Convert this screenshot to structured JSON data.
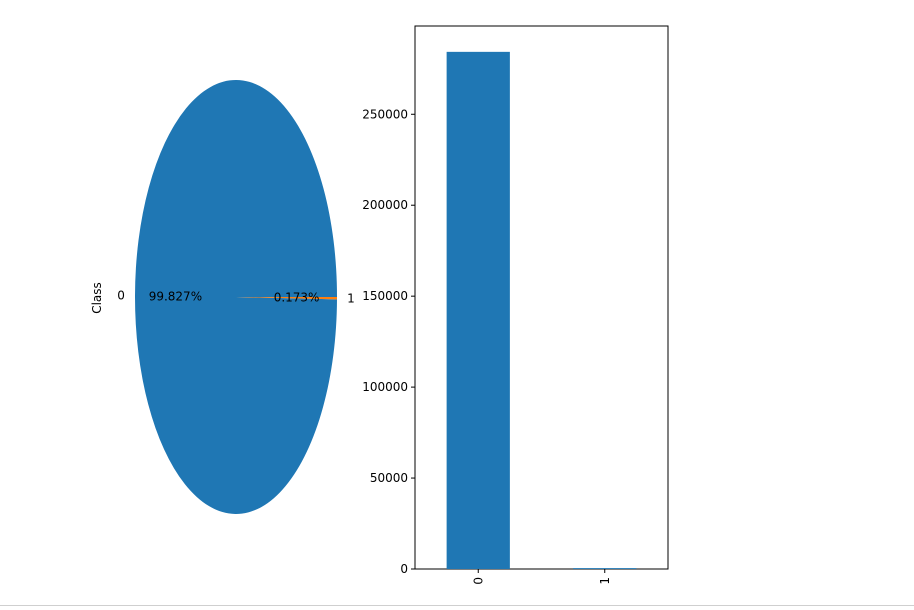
{
  "chart_data": [
    {
      "type": "pie",
      "ylabel": "Class",
      "labels": [
        "0",
        "1"
      ],
      "values": [
        99.827,
        0.173
      ],
      "autopct": [
        "99.827%",
        "0.173%"
      ],
      "colors": [
        "#1f77b4",
        "#ff7f0e"
      ]
    },
    {
      "type": "bar",
      "categories": [
        "0",
        "1"
      ],
      "values": [
        284315,
        492
      ],
      "ylim": [
        0,
        298530
      ],
      "yticks": [
        0,
        50000,
        100000,
        150000,
        200000,
        250000
      ],
      "ytick_labels": [
        "0",
        "50000",
        "100000",
        "150000",
        "200000",
        "250000"
      ],
      "color": "#1f77b4",
      "grid": false
    }
  ]
}
